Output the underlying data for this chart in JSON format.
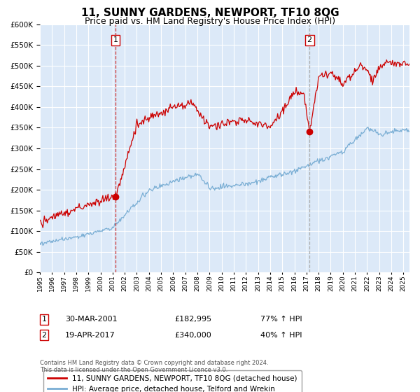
{
  "title": "11, SUNNY GARDENS, NEWPORT, TF10 8QG",
  "subtitle": "Price paid vs. HM Land Registry's House Price Index (HPI)",
  "red_label": "11, SUNNY GARDENS, NEWPORT, TF10 8QG (detached house)",
  "blue_label": "HPI: Average price, detached house, Telford and Wrekin",
  "sale1_date": "30-MAR-2001",
  "sale1_price": "£182,995",
  "sale1_hpi": "77% ↑ HPI",
  "sale1_year": 2001.25,
  "sale2_date": "19-APR-2017",
  "sale2_price": "£340,000",
  "sale2_hpi": "40% ↑ HPI",
  "sale2_year": 2017.25,
  "ylim": [
    0,
    600000
  ],
  "yticks": [
    0,
    50000,
    100000,
    150000,
    200000,
    250000,
    300000,
    350000,
    400000,
    450000,
    500000,
    550000,
    600000
  ],
  "xlim_start": 1995,
  "xlim_end": 2025.5,
  "background_color": "#dce9f8",
  "grid_color": "#ffffff",
  "red_color": "#cc0000",
  "blue_color": "#7aaed4",
  "vline1_color": "#cc3333",
  "vline2_color": "#aaaaaa",
  "footnote": "Contains HM Land Registry data © Crown copyright and database right 2024.\nThis data is licensed under the Open Government Licence v3.0.",
  "title_fontsize": 11,
  "subtitle_fontsize": 9,
  "sale1_dot_value": 182995,
  "sale2_dot_value": 340000
}
